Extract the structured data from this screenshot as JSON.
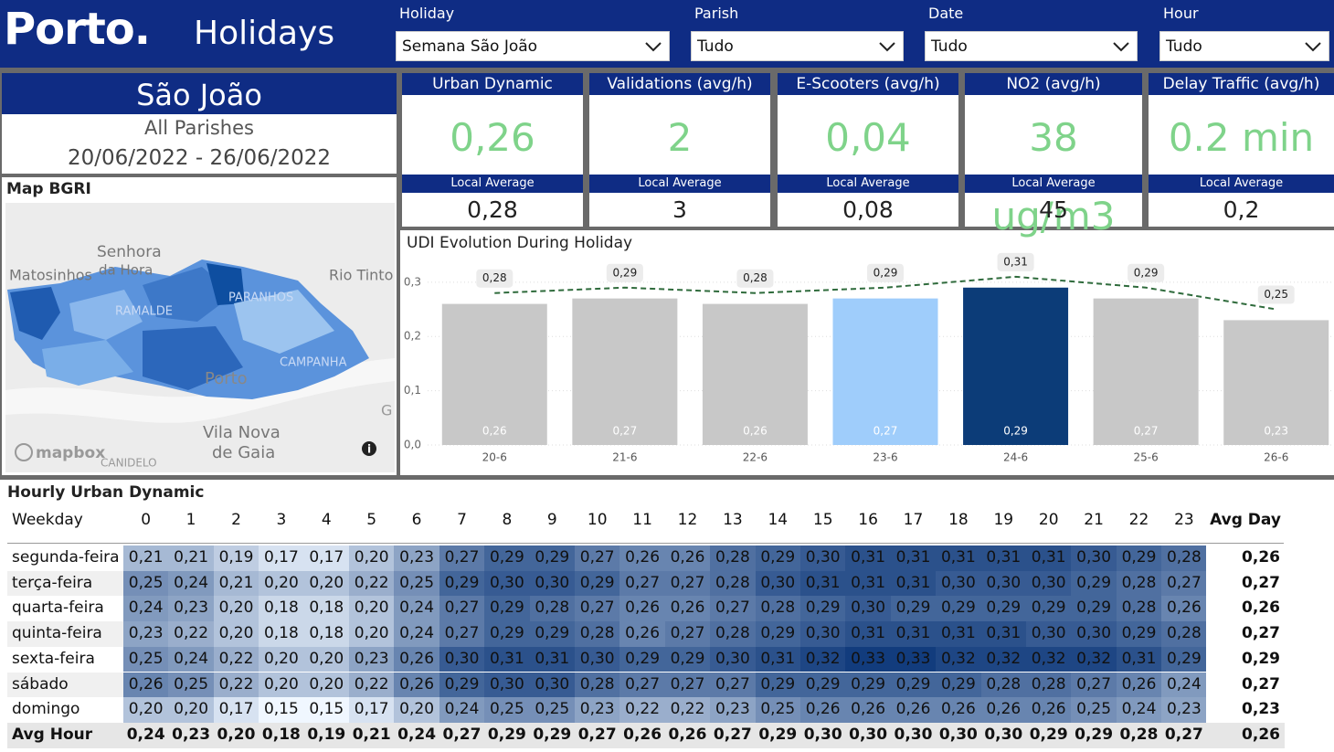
{
  "header": {
    "logo": "Porto.",
    "title": "Holidays"
  },
  "filters": [
    {
      "label": "Holiday",
      "value": "Semana São João"
    },
    {
      "label": "Parish",
      "value": "Tudo"
    },
    {
      "label": "Date",
      "value": "Tudo"
    },
    {
      "label": "Hour",
      "value": "Tudo"
    }
  ],
  "holiday_card": {
    "name": "São João",
    "parish": "All Parishes",
    "period": "20/06/2022 - 26/06/2022"
  },
  "kpis": [
    {
      "title": "Urban Dynamic",
      "value": "0,26",
      "average_label": "Local Average",
      "average": "0,28"
    },
    {
      "title": "Validations (avg/h)",
      "value": "2",
      "average_label": "Local Average",
      "average": "3"
    },
    {
      "title": "E-Scooters (avg/h)",
      "value": "0,04",
      "average_label": "Local Average",
      "average": "0,08"
    },
    {
      "title": "NO2 (avg/h)",
      "value": "38 ug/m3",
      "average_label": "Local Average",
      "average": "45"
    },
    {
      "title": "Delay Traffic (avg/h)",
      "value": "0.2 min",
      "average_label": "Local Average",
      "average": "0,2"
    }
  ],
  "map": {
    "title": "Map BGRI",
    "places": [
      "Senhora",
      "da Hora",
      "Matosinhos",
      "Rio Tinto",
      "PARANHOS",
      "RAMALDE",
      "CAMPANHA",
      "Porto",
      "Vila Nova",
      "de Gaia",
      "CANIDELO",
      "G"
    ],
    "attribution": "mapbox"
  },
  "chart_data": {
    "type": "bar",
    "title": "UDI Evolution During Holiday",
    "categories": [
      "20-6",
      "21-6",
      "22-6",
      "23-6",
      "24-6",
      "25-6",
      "26-6"
    ],
    "series": [
      {
        "type": "bar",
        "colors": [
          "#c8c8c8",
          "#c8c8c8",
          "#c8c8c8",
          "#9fcdfb",
          "#0c3c78",
          "#c8c8c8",
          "#c8c8c8"
        ],
        "values": [
          0.26,
          0.27,
          0.26,
          0.27,
          0.29,
          0.27,
          0.23
        ],
        "value_labels": [
          "0,26",
          "0,27",
          "0,26",
          "0,27",
          "0,29",
          "0,27",
          "0,23"
        ]
      },
      {
        "type": "line",
        "color": "#2f6b3c",
        "values": [
          0.28,
          0.29,
          0.28,
          0.29,
          0.31,
          0.29,
          0.25
        ],
        "value_labels": [
          "0,28",
          "0,29",
          "0,28",
          "0,29",
          "0,31",
          "0,29",
          "0,25"
        ]
      }
    ],
    "ylim": [
      0,
      0.33
    ],
    "yticks": [
      {
        "value": 0,
        "label": "0,0"
      },
      {
        "value": 0.1,
        "label": "0,1"
      },
      {
        "value": 0.2,
        "label": "0,2"
      },
      {
        "value": 0.3,
        "label": "0,3"
      }
    ],
    "grid": true
  },
  "table": {
    "title": "Hourly Urban Dynamic",
    "columns": [
      "Weekday",
      "0",
      "1",
      "2",
      "3",
      "4",
      "5",
      "6",
      "7",
      "8",
      "9",
      "10",
      "11",
      "12",
      "13",
      "14",
      "15",
      "16",
      "17",
      "18",
      "19",
      "20",
      "21",
      "22",
      "23",
      "Avg Day"
    ],
    "rows": [
      {
        "label": "segunda-feira",
        "cells": [
          "0,21",
          "0,21",
          "0,19",
          "0,17",
          "0,17",
          "0,20",
          "0,23",
          "0,27",
          "0,29",
          "0,29",
          "0,27",
          "0,26",
          "0,26",
          "0,28",
          "0,29",
          "0,30",
          "0,31",
          "0,31",
          "0,31",
          "0,31",
          "0,31",
          "0,30",
          "0,29",
          "0,28"
        ],
        "avg": "0,26"
      },
      {
        "label": "terça-feira",
        "cells": [
          "0,25",
          "0,24",
          "0,21",
          "0,20",
          "0,20",
          "0,22",
          "0,25",
          "0,29",
          "0,30",
          "0,30",
          "0,29",
          "0,27",
          "0,27",
          "0,28",
          "0,30",
          "0,31",
          "0,31",
          "0,31",
          "0,30",
          "0,30",
          "0,30",
          "0,29",
          "0,28",
          "0,27"
        ],
        "avg": "0,27"
      },
      {
        "label": "quarta-feira",
        "cells": [
          "0,24",
          "0,23",
          "0,20",
          "0,18",
          "0,18",
          "0,20",
          "0,24",
          "0,27",
          "0,29",
          "0,28",
          "0,27",
          "0,26",
          "0,26",
          "0,27",
          "0,28",
          "0,29",
          "0,30",
          "0,29",
          "0,29",
          "0,29",
          "0,29",
          "0,29",
          "0,28",
          "0,26"
        ],
        "avg": "0,26"
      },
      {
        "label": "quinta-feira",
        "cells": [
          "0,23",
          "0,22",
          "0,20",
          "0,18",
          "0,18",
          "0,20",
          "0,24",
          "0,27",
          "0,29",
          "0,29",
          "0,28",
          "0,26",
          "0,27",
          "0,28",
          "0,29",
          "0,30",
          "0,31",
          "0,31",
          "0,31",
          "0,31",
          "0,30",
          "0,30",
          "0,29",
          "0,28"
        ],
        "avg": "0,27"
      },
      {
        "label": "sexta-feira",
        "cells": [
          "0,25",
          "0,24",
          "0,22",
          "0,20",
          "0,20",
          "0,23",
          "0,26",
          "0,30",
          "0,31",
          "0,31",
          "0,30",
          "0,29",
          "0,29",
          "0,30",
          "0,31",
          "0,32",
          "0,33",
          "0,33",
          "0,32",
          "0,32",
          "0,32",
          "0,32",
          "0,31",
          "0,29"
        ],
        "avg": "0,29"
      },
      {
        "label": "sábado",
        "cells": [
          "0,26",
          "0,25",
          "0,22",
          "0,20",
          "0,20",
          "0,22",
          "0,26",
          "0,29",
          "0,30",
          "0,30",
          "0,28",
          "0,27",
          "0,27",
          "0,27",
          "0,29",
          "0,29",
          "0,29",
          "0,29",
          "0,29",
          "0,28",
          "0,28",
          "0,27",
          "0,26",
          "0,24"
        ],
        "avg": "0,27"
      },
      {
        "label": "domingo",
        "cells": [
          "0,20",
          "0,20",
          "0,17",
          "0,15",
          "0,15",
          "0,17",
          "0,20",
          "0,24",
          "0,25",
          "0,25",
          "0,23",
          "0,22",
          "0,22",
          "0,23",
          "0,25",
          "0,26",
          "0,26",
          "0,26",
          "0,26",
          "0,26",
          "0,26",
          "0,25",
          "0,24",
          "0,23"
        ],
        "avg": "0,23"
      }
    ],
    "total": {
      "label": "Avg Hour",
      "cells": [
        "0,24",
        "0,23",
        "0,20",
        "0,18",
        "0,19",
        "0,21",
        "0,24",
        "0,27",
        "0,29",
        "0,29",
        "0,27",
        "0,26",
        "0,26",
        "0,27",
        "0,29",
        "0,30",
        "0,30",
        "0,30",
        "0,30",
        "0,30",
        "0,29",
        "0,29",
        "0,28",
        "0,27"
      ],
      "avg": "0,26"
    }
  }
}
